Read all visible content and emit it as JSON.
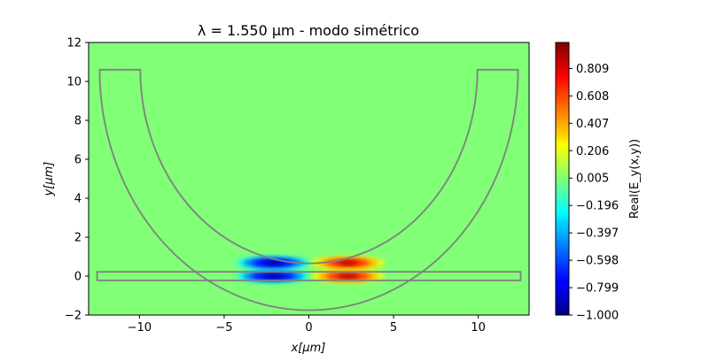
{
  "chart_data": {
    "type": "heatmap",
    "title": "λ = 1.550 μm - modo simétrico",
    "xlabel": "x[μm]",
    "ylabel": "y[μm]",
    "xlim": [
      -13,
      13
    ],
    "ylim": [
      -2,
      12
    ],
    "x_ticks": [
      -10,
      -5,
      0,
      5,
      10
    ],
    "y_ticks": [
      -2,
      0,
      2,
      4,
      6,
      8,
      10,
      12
    ],
    "colorbar": {
      "label": "Real(E_y(x,y))",
      "range": [
        -1.0,
        1.0
      ],
      "colormap": "jet",
      "ticks": [
        "−1.000",
        "−0.799",
        "−0.598",
        "−0.397",
        "−0.196",
        "0.005",
        "0.206",
        "0.407",
        "0.608",
        "0.809"
      ]
    },
    "field_lobes": [
      {
        "x": -2.1,
        "y": 0.0,
        "amplitude": -1.0
      },
      {
        "x": 2.3,
        "y": 0.0,
        "amplitude": 1.0
      },
      {
        "x": -2.1,
        "y": 0.68,
        "amplitude": -0.95
      },
      {
        "x": 2.3,
        "y": 0.68,
        "amplitude": 0.95
      }
    ],
    "waveguides": {
      "straight": {
        "x": [
          -12.5,
          12.5
        ],
        "y": [
          -0.22,
          0.22
        ]
      },
      "ring": {
        "center_x": 0,
        "center_y": 10.6,
        "inner_radius": 9.95,
        "outer_radius": 12.35,
        "top_y": 10.6
      }
    },
    "outline_color": "#808080",
    "background_color": "#80ff77"
  }
}
